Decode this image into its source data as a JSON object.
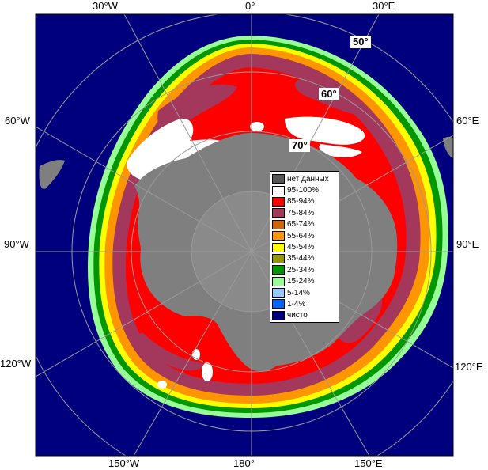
{
  "map": {
    "longitude_labels": [
      {
        "text": "30°W"
      },
      {
        "text": "0°"
      },
      {
        "text": "30°E"
      },
      {
        "text": "60°W"
      },
      {
        "text": "60°E"
      },
      {
        "text": "90°W"
      },
      {
        "text": "90°E"
      },
      {
        "text": "120°W"
      },
      {
        "text": "120°E"
      },
      {
        "text": "150°W"
      },
      {
        "text": "180°"
      },
      {
        "text": "150°E"
      }
    ],
    "latitude_labels": [
      {
        "text": "50°"
      },
      {
        "text": "60°"
      },
      {
        "text": "70°"
      }
    ],
    "colors": {
      "ocean": "#00007f",
      "land": "#7f7f7f",
      "frame": "#000000",
      "graticule": "#9a9a9a"
    }
  },
  "legend": {
    "items": [
      {
        "label": "нет данных",
        "color": "#555555"
      },
      {
        "label": "95-100%",
        "color": "#ffffff"
      },
      {
        "label": "85-94%",
        "color": "#ff0000"
      },
      {
        "label": "75-84%",
        "color": "#a3385c"
      },
      {
        "label": "65-74%",
        "color": "#d26400"
      },
      {
        "label": "55-64%",
        "color": "#ff9600"
      },
      {
        "label": "45-54%",
        "color": "#ffff00"
      },
      {
        "label": "35-44%",
        "color": "#969600"
      },
      {
        "label": "25-34%",
        "color": "#009600"
      },
      {
        "label": "15-24%",
        "color": "#96ff96"
      },
      {
        "label": "5-14%",
        "color": "#96c8ff"
      },
      {
        "label": "1-4%",
        "color": "#0064ff"
      },
      {
        "label": "чисто",
        "color": "#00007f"
      }
    ]
  }
}
